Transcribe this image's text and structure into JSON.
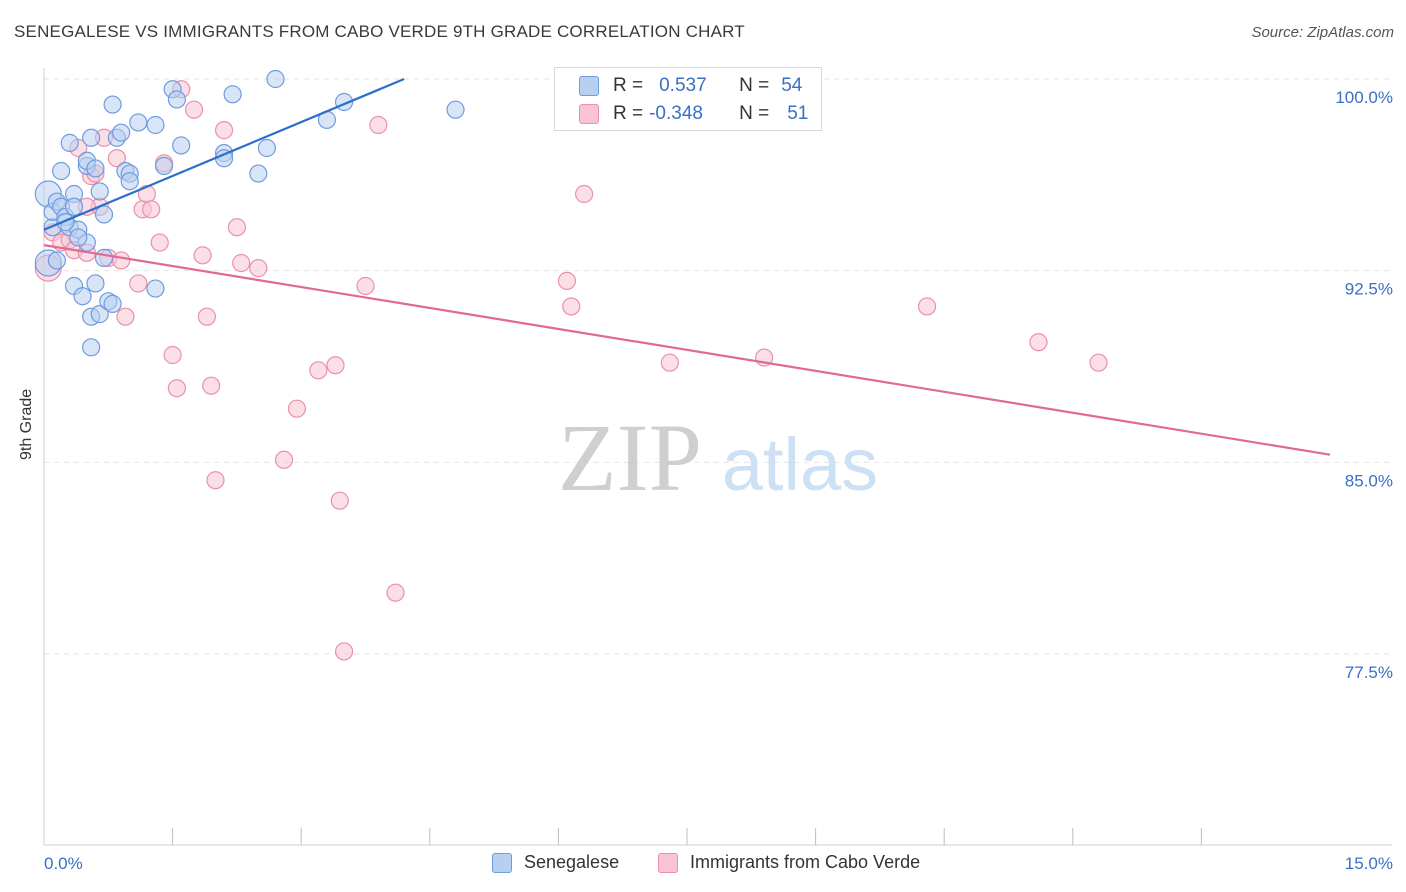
{
  "header": {
    "title": "SENEGALESE VS IMMIGRANTS FROM CABO VERDE 9TH GRADE CORRELATION CHART",
    "source": "Source: ZipAtlas.com"
  },
  "watermark": {
    "zip": "ZIP",
    "atlas": "atlas"
  },
  "legend": {
    "series1": {
      "r_label": "R =",
      "r_value": "0.537",
      "n_label": "N =",
      "n_value": "54"
    },
    "series2": {
      "r_label": "R =",
      "r_value": "-0.348",
      "n_label": "N =",
      "n_value": "51"
    }
  },
  "bottom_legend": {
    "series1": "Senegalese",
    "series2": "Immigrants from Cabo Verde"
  },
  "colors": {
    "blue_fill": "#b8d0f0",
    "blue_stroke": "#6f9be0",
    "blue_line": "#2b6fcb",
    "pink_fill": "#f8c4d3",
    "pink_stroke": "#ec8fab",
    "pink_line": "#e06a94",
    "tick_text": "#3a6fc4",
    "grid": "#e2e2e2"
  },
  "chart_data": {
    "type": "scatter",
    "title": "SENEGALESE VS IMMIGRANTS FROM CABO VERDE 9TH GRADE CORRELATION CHART",
    "xlabel": "",
    "ylabel": "9th Grade",
    "xlim": [
      0,
      15
    ],
    "ylim": [
      70,
      100.7
    ],
    "x_tick_labels": {
      "left": "0.0%",
      "right": "15.0%"
    },
    "x_minor_ticks": [
      1.5,
      3,
      4.5,
      6,
      7.5,
      9,
      10.5,
      12,
      13.5
    ],
    "y_ticks": [
      {
        "value": 100.0,
        "label": "100.0%"
      },
      {
        "value": 92.5,
        "label": "92.5%"
      },
      {
        "value": 85.0,
        "label": "85.0%"
      },
      {
        "value": 77.5,
        "label": "77.5%"
      }
    ],
    "series": [
      {
        "name": "Senegalese",
        "color": "#6f9be0",
        "points": [
          [
            0.05,
            95.5
          ],
          [
            0.05,
            92.8
          ],
          [
            0.1,
            94.2
          ],
          [
            0.1,
            94.8
          ],
          [
            0.15,
            95.2
          ],
          [
            0.2,
            96.4
          ],
          [
            0.2,
            95.0
          ],
          [
            0.25,
            94.6
          ],
          [
            0.3,
            97.5
          ],
          [
            0.3,
            94.2
          ],
          [
            0.35,
            95.5
          ],
          [
            0.35,
            95.0
          ],
          [
            0.35,
            91.9
          ],
          [
            0.4,
            94.1
          ],
          [
            0.45,
            91.5
          ],
          [
            0.5,
            96.6
          ],
          [
            0.5,
            96.8
          ],
          [
            0.5,
            93.6
          ],
          [
            0.55,
            97.7
          ],
          [
            0.55,
            90.7
          ],
          [
            0.55,
            89.5
          ],
          [
            0.6,
            96.5
          ],
          [
            0.6,
            92.0
          ],
          [
            0.65,
            90.8
          ],
          [
            0.65,
            95.6
          ],
          [
            0.7,
            94.7
          ],
          [
            0.7,
            93.0
          ],
          [
            0.75,
            91.3
          ],
          [
            0.8,
            91.2
          ],
          [
            0.8,
            99.0
          ],
          [
            0.85,
            97.7
          ],
          [
            0.9,
            97.9
          ],
          [
            0.95,
            96.4
          ],
          [
            1.0,
            96.3
          ],
          [
            1.0,
            96.0
          ],
          [
            1.1,
            98.3
          ],
          [
            1.3,
            98.2
          ],
          [
            1.3,
            91.8
          ],
          [
            1.4,
            96.6
          ],
          [
            1.5,
            99.6
          ],
          [
            1.55,
            99.2
          ],
          [
            1.6,
            97.4
          ],
          [
            2.1,
            97.1
          ],
          [
            2.1,
            96.9
          ],
          [
            2.2,
            99.4
          ],
          [
            2.5,
            96.3
          ],
          [
            2.6,
            97.3
          ],
          [
            2.7,
            100.0
          ],
          [
            3.3,
            98.4
          ],
          [
            3.5,
            99.1
          ],
          [
            4.8,
            98.8
          ],
          [
            0.25,
            94.4
          ],
          [
            0.4,
            93.8
          ],
          [
            0.15,
            92.9
          ]
        ],
        "trend": {
          "x": [
            0.0,
            4.2
          ],
          "y": [
            94.1,
            100.0
          ]
        }
      },
      {
        "name": "Immigrants from Cabo Verde",
        "color": "#ec8fab",
        "points": [
          [
            0.05,
            92.6
          ],
          [
            0.1,
            94.0
          ],
          [
            0.2,
            93.6
          ],
          [
            0.3,
            93.7
          ],
          [
            0.35,
            93.3
          ],
          [
            0.4,
            97.3
          ],
          [
            0.5,
            93.2
          ],
          [
            0.55,
            96.2
          ],
          [
            0.6,
            96.3
          ],
          [
            0.65,
            95.0
          ],
          [
            0.7,
            97.7
          ],
          [
            0.75,
            93.0
          ],
          [
            0.85,
            96.9
          ],
          [
            0.9,
            92.9
          ],
          [
            0.95,
            90.7
          ],
          [
            1.1,
            92.0
          ],
          [
            1.15,
            94.9
          ],
          [
            1.2,
            95.5
          ],
          [
            1.25,
            94.9
          ],
          [
            1.35,
            93.6
          ],
          [
            1.4,
            96.7
          ],
          [
            1.5,
            89.2
          ],
          [
            1.55,
            87.9
          ],
          [
            1.6,
            99.6
          ],
          [
            1.75,
            98.8
          ],
          [
            1.85,
            93.1
          ],
          [
            1.9,
            90.7
          ],
          [
            1.95,
            88.0
          ],
          [
            2.0,
            84.3
          ],
          [
            2.1,
            98.0
          ],
          [
            2.25,
            94.2
          ],
          [
            2.3,
            92.8
          ],
          [
            2.5,
            92.6
          ],
          [
            2.8,
            85.1
          ],
          [
            2.95,
            87.1
          ],
          [
            3.2,
            88.6
          ],
          [
            3.4,
            88.8
          ],
          [
            3.45,
            83.5
          ],
          [
            3.75,
            91.9
          ],
          [
            3.9,
            98.2
          ],
          [
            4.1,
            79.9
          ],
          [
            3.5,
            77.6
          ],
          [
            6.3,
            95.5
          ],
          [
            6.1,
            92.1
          ],
          [
            6.15,
            91.1
          ],
          [
            7.3,
            88.9
          ],
          [
            8.4,
            89.1
          ],
          [
            10.3,
            91.1
          ],
          [
            11.6,
            89.7
          ],
          [
            12.3,
            88.9
          ],
          [
            0.5,
            95.0
          ]
        ],
        "trend": {
          "x": [
            0.0,
            15.0
          ],
          "y": [
            93.5,
            85.3
          ]
        }
      }
    ]
  }
}
